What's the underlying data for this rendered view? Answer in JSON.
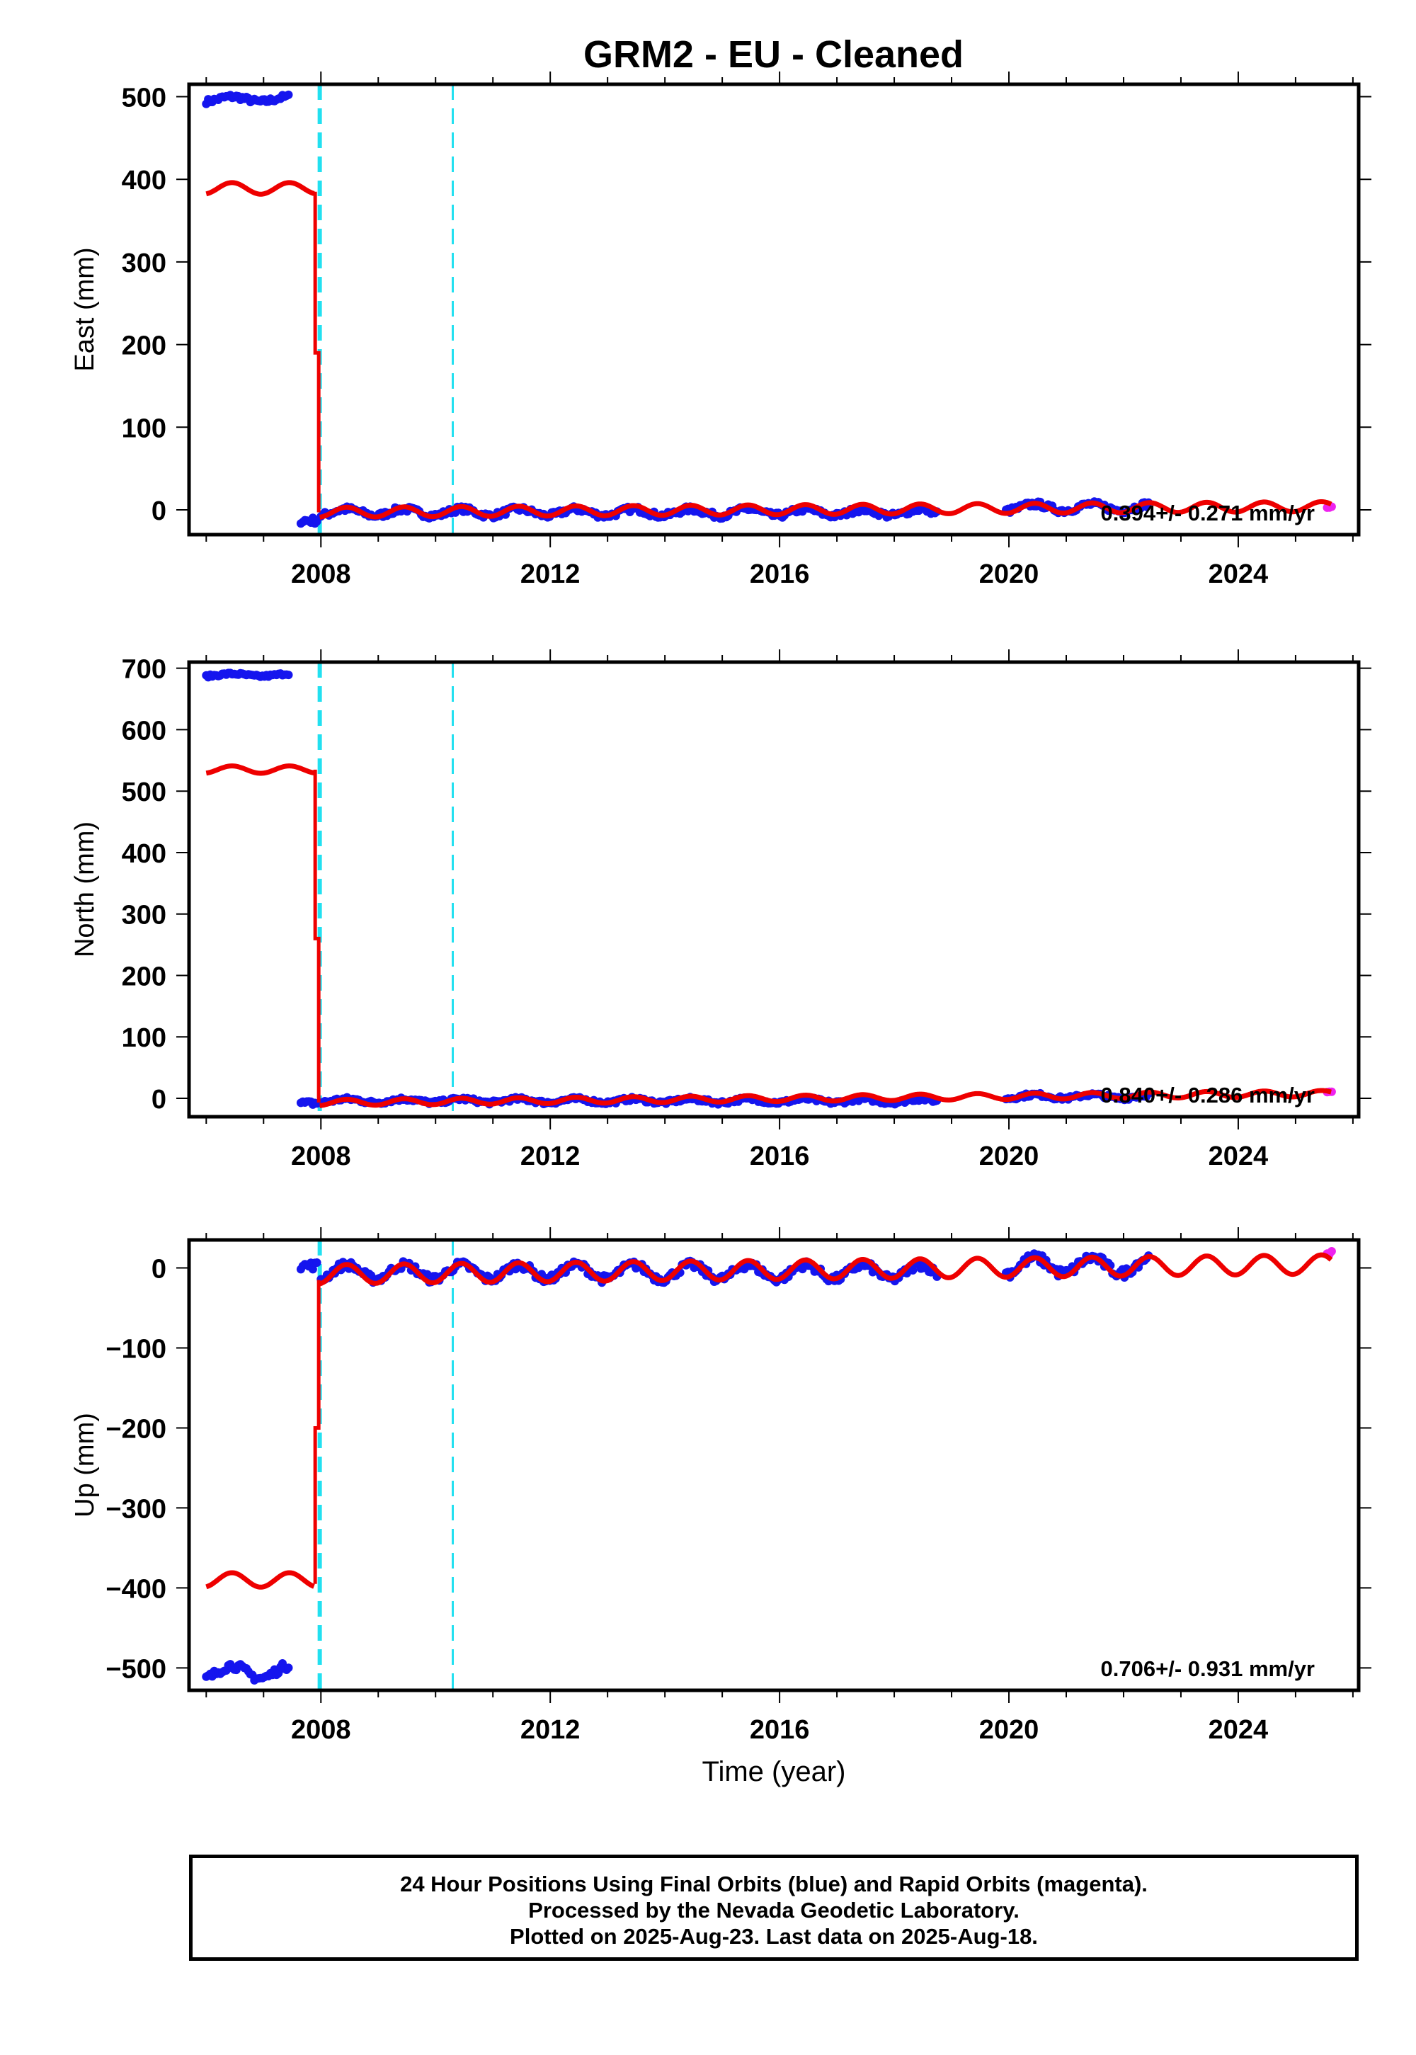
{
  "title": "GRM2  - EU - Cleaned",
  "colors": {
    "final_orbits": "#1515ee",
    "rapid_orbits": "#ee22ee",
    "model": "#ee0000",
    "offsets": "#22e0f0"
  },
  "xlabel": "Time (year)",
  "footer": [
    "24 Hour Positions Using Final Orbits (blue) and Rapid Orbits (magenta).",
    "Processed by the Nevada Geodetic Laboratory.",
    "Plotted on 2025-Aug-23. Last data on 2025-Aug-18."
  ],
  "chart_data": [
    {
      "type": "scatter",
      "component": "east",
      "ylabel": "East (mm)",
      "xlim": [
        2005.7,
        2026.1
      ],
      "ylim": [
        -30,
        515
      ],
      "xticks": [
        2008,
        2012,
        2016,
        2020,
        2024
      ],
      "yticks": [
        0,
        100,
        200,
        300,
        400,
        500
      ],
      "velocity_text": "0.394+/- 0.271 mm/yr",
      "offset_lines": [
        2007.98,
        2010.3
      ],
      "series": [
        {
          "name": "Final Orbits",
          "kind": "points",
          "segments": [
            {
              "x": [
                2006.0,
                2007.45
              ],
              "level": 497,
              "amp": 3,
              "scatter": 3
            },
            {
              "x": [
                2007.65,
                2007.95
              ],
              "level": -13,
              "amp": 0,
              "scatter": 4
            },
            {
              "x": [
                2008.0,
                2018.75
              ],
              "level": -3,
              "amp": 4,
              "scatter": 3.5
            },
            {
              "x": [
                2019.95,
                2022.45
              ],
              "level": 3,
              "amp": 4,
              "scatter": 3.5
            }
          ]
        },
        {
          "name": "Rapid Orbits",
          "kind": "points",
          "segments": [
            {
              "x": [
                2025.55,
                2025.63
              ],
              "level": 3,
              "amp": 0,
              "scatter": 1
            }
          ]
        },
        {
          "name": "Model",
          "kind": "line",
          "segments": [
            {
              "x": [
                2006.0,
                2007.88
              ],
              "level": 389,
              "amp": 7
            },
            {
              "x": [
                2007.98,
                2025.63
              ],
              "level": -3,
              "amp": 6,
              "trend": 0.394
            }
          ],
          "jump": [
            {
              "x": 2007.9,
              "y": [
                385,
                190,
                -3
              ]
            }
          ]
        }
      ]
    },
    {
      "type": "scatter",
      "component": "north",
      "ylabel": "North (mm)",
      "xlim": [
        2005.7,
        2026.1
      ],
      "ylim": [
        -30,
        710
      ],
      "xticks": [
        2008,
        2012,
        2016,
        2020,
        2024
      ],
      "yticks": [
        0,
        100,
        200,
        300,
        400,
        500,
        600,
        700
      ],
      "velocity_text": "0.840+/- 0.286 mm/yr",
      "offset_lines": [
        2007.98,
        2010.3
      ],
      "series": [
        {
          "name": "Final Orbits",
          "kind": "points",
          "segments": [
            {
              "x": [
                2006.0,
                2007.45
              ],
              "level": 689,
              "amp": 2,
              "scatter": 2
            },
            {
              "x": [
                2007.65,
                2007.95
              ],
              "level": -8,
              "amp": 0,
              "scatter": 4
            },
            {
              "x": [
                2008.0,
                2018.75
              ],
              "level": -4,
              "amp": 3,
              "scatter": 3
            },
            {
              "x": [
                2019.95,
                2022.45
              ],
              "level": 3,
              "amp": 3,
              "scatter": 3
            }
          ]
        },
        {
          "name": "Rapid Orbits",
          "kind": "points",
          "segments": [
            {
              "x": [
                2025.55,
                2025.63
              ],
              "level": 10,
              "amp": 0,
              "scatter": 1
            }
          ]
        },
        {
          "name": "Model",
          "kind": "line",
          "segments": [
            {
              "x": [
                2006.0,
                2007.88
              ],
              "level": 535,
              "amp": 6
            },
            {
              "x": [
                2007.98,
                2025.63
              ],
              "level": -7,
              "amp": 5,
              "trend": 0.84
            }
          ],
          "jump": [
            {
              "x": 2007.9,
              "y": [
                535,
                260,
                -7
              ]
            }
          ]
        }
      ]
    },
    {
      "type": "scatter",
      "component": "up",
      "ylabel": "Up (mm)",
      "xlim": [
        2005.7,
        2026.1
      ],
      "ylim": [
        -528,
        35
      ],
      "xticks": [
        2008,
        2012,
        2016,
        2020,
        2024
      ],
      "yticks": [
        -500,
        -400,
        -300,
        -200,
        -100,
        0
      ],
      "velocity_text": "0.706+/- 0.931 mm/yr",
      "offset_lines": [
        2007.98,
        2010.3
      ],
      "series": [
        {
          "name": "Final Orbits",
          "kind": "points",
          "segments": [
            {
              "x": [
                2006.0,
                2007.45
              ],
              "level": -505,
              "amp": 8,
              "scatter": 5
            },
            {
              "x": [
                2007.65,
                2007.95
              ],
              "level": 3,
              "amp": 0,
              "scatter": 5
            },
            {
              "x": [
                2008.0,
                2018.75
              ],
              "level": -5,
              "amp": 9,
              "scatter": 5
            },
            {
              "x": [
                2019.95,
                2022.45
              ],
              "level": 3,
              "amp": 10,
              "scatter": 6
            }
          ]
        },
        {
          "name": "Rapid Orbits",
          "kind": "points",
          "segments": [
            {
              "x": [
                2025.55,
                2025.63
              ],
              "level": 19,
              "amp": 0,
              "scatter": 2
            }
          ]
        },
        {
          "name": "Model",
          "kind": "line",
          "segments": [
            {
              "x": [
                2006.0,
                2007.88
              ],
              "level": -390,
              "amp": 9
            },
            {
              "x": [
                2007.98,
                2025.63
              ],
              "level": -8,
              "amp": 12,
              "trend": 0.706
            }
          ],
          "jump": [
            {
              "x": 2007.9,
              "y": [
                -395,
                -200,
                -15
              ]
            }
          ]
        }
      ]
    }
  ]
}
